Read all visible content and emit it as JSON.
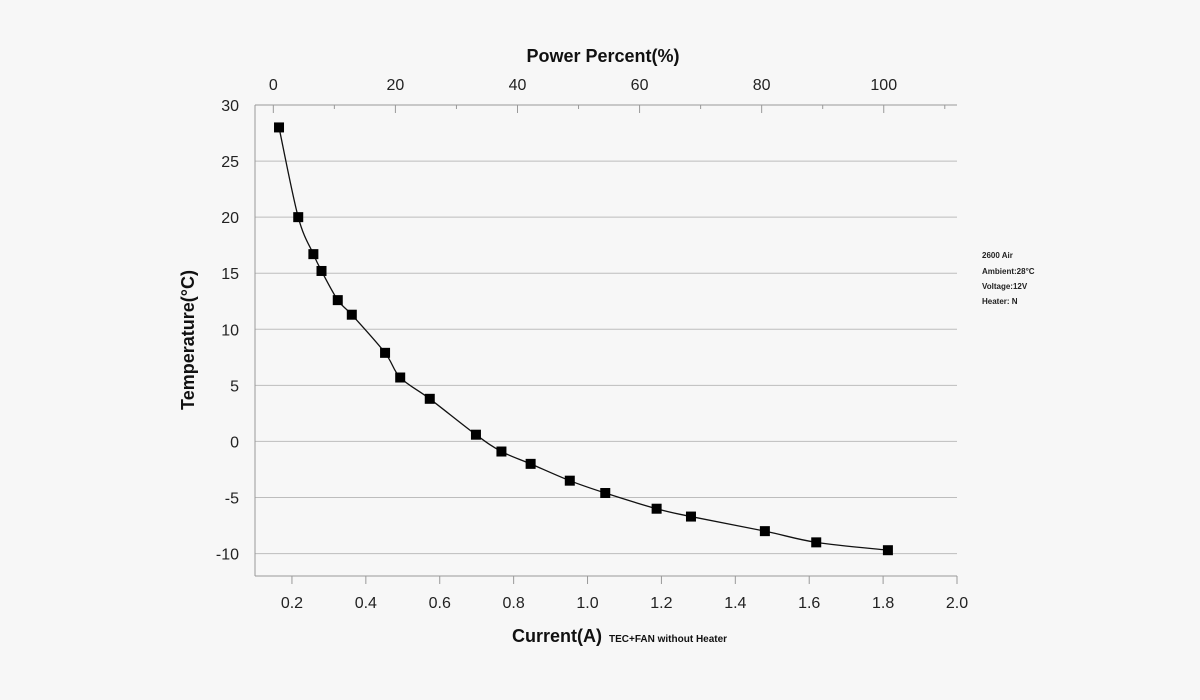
{
  "chart_data": {
    "type": "line",
    "xlabel": "Current(A)",
    "xlabel_note": "TEC+FAN without Heater",
    "ylabel": "Temperature(°C)",
    "x2label": "Power Percent(%)",
    "xlim": [
      0.1,
      2.0
    ],
    "ylim": [
      -12,
      30
    ],
    "x2lim": [
      -3,
      112
    ],
    "xticks": [
      "0.2",
      "0.4",
      "0.6",
      "0.8",
      "1.0",
      "1.2",
      "1.4",
      "1.6",
      "1.8",
      "2.0"
    ],
    "yticks": [
      "30",
      "25",
      "20",
      "15",
      "10",
      "5",
      "0",
      "-5",
      "-10"
    ],
    "x2ticks": [
      "0",
      "20",
      "40",
      "60",
      "80",
      "100"
    ],
    "grid": "horizontal",
    "marker": "square",
    "line_color": "#111111",
    "annotation": [
      "2600 Air",
      "Ambient:28°C",
      "Voltage:12V",
      "Heater: N"
    ],
    "series": [
      {
        "x": [
          0.165,
          0.217,
          0.258,
          0.28,
          0.324,
          0.362,
          0.452,
          0.493,
          0.573,
          0.698,
          0.767,
          0.846,
          0.952,
          1.048,
          1.187,
          1.28,
          1.48,
          1.619,
          1.813
        ],
        "y": [
          28,
          20,
          16.7,
          15.2,
          12.6,
          11.3,
          7.9,
          5.7,
          3.8,
          0.6,
          -0.9,
          -2.0,
          -3.5,
          -4.6,
          -6.0,
          -6.7,
          -8.0,
          -9.0,
          -9.7
        ]
      }
    ]
  }
}
